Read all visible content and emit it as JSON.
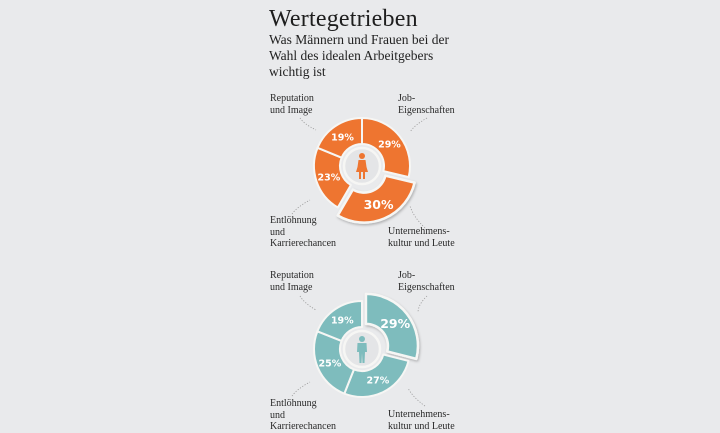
{
  "header": {
    "title": "Wertegetrieben",
    "subtitle": "Was Männern und Frauen bei der Wahl des idealen Arbeitgebers wichtig ist"
  },
  "colors": {
    "background": "#e9eaec",
    "women": "#ee7530",
    "men": "#7ebcbd",
    "separator": "#f4f4f2",
    "center": "#e4e5e7"
  },
  "labels": {
    "reputation": "Reputation\nund Image",
    "job": "Job-\nEigenschaften",
    "pay": "Entlöhnung\nund\nKarrierechancen",
    "culture": "Unternehmens-\nkultur und Leute"
  },
  "chart_data": [
    {
      "type": "pie",
      "subtype": "donut",
      "group": "Frauen",
      "icon": "female-icon",
      "title": "Wertegetrieben",
      "categories": [
        "Reputation und Image",
        "Job-Eigenschaften",
        "Unternehmenskultur und Leute",
        "Entlöhnung und Karrierechancen"
      ],
      "values": [
        19,
        29,
        30,
        23
      ],
      "value_labels": [
        "19%",
        "29%",
        "30%",
        "23%"
      ],
      "highlighted": "Unternehmenskultur und Leute",
      "color": "#ee7530"
    },
    {
      "type": "pie",
      "subtype": "donut",
      "group": "Männer",
      "icon": "male-icon",
      "title": "Wertegetrieben",
      "categories": [
        "Reputation und Image",
        "Job-Eigenschaften",
        "Unternehmenskultur und Leute",
        "Entlöhnung und Karrierechancen"
      ],
      "values": [
        19,
        29,
        27,
        25
      ],
      "value_labels": [
        "19%",
        "29%",
        "27%",
        "25%"
      ],
      "highlighted": "Job-Eigenschaften",
      "color": "#7ebcbd"
    }
  ]
}
